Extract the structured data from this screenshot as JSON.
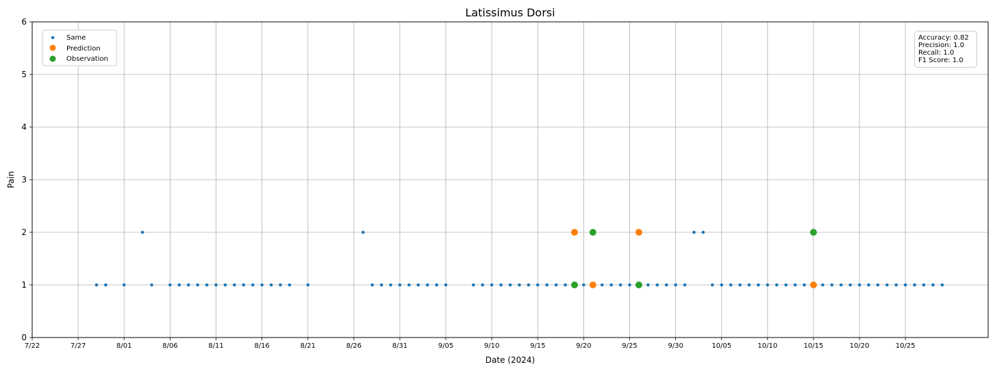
{
  "chart_data": {
    "type": "scatter",
    "title": "Latissimus Dorsi",
    "xlabel": "Date (2024)",
    "ylabel": "Pain",
    "ylim": [
      0,
      6
    ],
    "yticks": [
      "0",
      "1",
      "2",
      "3",
      "4",
      "5",
      "6"
    ],
    "xlim": [
      "2024-07-22",
      "2024-11-03"
    ],
    "xticks": [
      "7/22",
      "7/27",
      "8/01",
      "8/06",
      "8/11",
      "8/16",
      "8/21",
      "8/26",
      "8/31",
      "9/05",
      "9/10",
      "9/15",
      "9/20",
      "9/25",
      "9/30",
      "10/05",
      "10/10",
      "10/15",
      "10/20",
      "10/25"
    ],
    "grid": true,
    "legend_position": "top-left",
    "series": [
      {
        "name": "Same",
        "color": "#1f77b4",
        "marker": "small-circle",
        "points": [
          [
            "2024-07-29",
            1
          ],
          [
            "2024-07-30",
            1
          ],
          [
            "2024-08-01",
            1
          ],
          [
            "2024-08-03",
            2
          ],
          [
            "2024-08-04",
            1
          ],
          [
            "2024-08-06",
            1
          ],
          [
            "2024-08-07",
            1
          ],
          [
            "2024-08-08",
            1
          ],
          [
            "2024-08-09",
            1
          ],
          [
            "2024-08-10",
            1
          ],
          [
            "2024-08-11",
            1
          ],
          [
            "2024-08-12",
            1
          ],
          [
            "2024-08-13",
            1
          ],
          [
            "2024-08-14",
            1
          ],
          [
            "2024-08-15",
            1
          ],
          [
            "2024-08-16",
            1
          ],
          [
            "2024-08-17",
            1
          ],
          [
            "2024-08-18",
            1
          ],
          [
            "2024-08-19",
            1
          ],
          [
            "2024-08-21",
            1
          ],
          [
            "2024-08-27",
            2
          ],
          [
            "2024-08-28",
            1
          ],
          [
            "2024-08-29",
            1
          ],
          [
            "2024-08-30",
            1
          ],
          [
            "2024-08-31",
            1
          ],
          [
            "2024-09-01",
            1
          ],
          [
            "2024-09-02",
            1
          ],
          [
            "2024-09-03",
            1
          ],
          [
            "2024-09-04",
            1
          ],
          [
            "2024-09-05",
            1
          ],
          [
            "2024-09-08",
            1
          ],
          [
            "2024-09-09",
            1
          ],
          [
            "2024-09-10",
            1
          ],
          [
            "2024-09-11",
            1
          ],
          [
            "2024-09-12",
            1
          ],
          [
            "2024-09-13",
            1
          ],
          [
            "2024-09-14",
            1
          ],
          [
            "2024-09-15",
            1
          ],
          [
            "2024-09-16",
            1
          ],
          [
            "2024-09-17",
            1
          ],
          [
            "2024-09-18",
            1
          ],
          [
            "2024-09-20",
            1
          ],
          [
            "2024-09-22",
            1
          ],
          [
            "2024-09-23",
            1
          ],
          [
            "2024-09-24",
            1
          ],
          [
            "2024-09-25",
            1
          ],
          [
            "2024-09-27",
            1
          ],
          [
            "2024-09-28",
            1
          ],
          [
            "2024-09-29",
            1
          ],
          [
            "2024-09-30",
            1
          ],
          [
            "2024-10-01",
            1
          ],
          [
            "2024-10-02",
            2
          ],
          [
            "2024-10-03",
            2
          ],
          [
            "2024-10-04",
            1
          ],
          [
            "2024-10-05",
            1
          ],
          [
            "2024-10-06",
            1
          ],
          [
            "2024-10-07",
            1
          ],
          [
            "2024-10-08",
            1
          ],
          [
            "2024-10-09",
            1
          ],
          [
            "2024-10-10",
            1
          ],
          [
            "2024-10-11",
            1
          ],
          [
            "2024-10-12",
            1
          ],
          [
            "2024-10-13",
            1
          ],
          [
            "2024-10-14",
            1
          ],
          [
            "2024-10-16",
            1
          ],
          [
            "2024-10-17",
            1
          ],
          [
            "2024-10-18",
            1
          ],
          [
            "2024-10-19",
            1
          ],
          [
            "2024-10-20",
            1
          ],
          [
            "2024-10-21",
            1
          ],
          [
            "2024-10-22",
            1
          ],
          [
            "2024-10-23",
            1
          ],
          [
            "2024-10-24",
            1
          ],
          [
            "2024-10-25",
            1
          ],
          [
            "2024-10-26",
            1
          ],
          [
            "2024-10-27",
            1
          ],
          [
            "2024-10-28",
            1
          ],
          [
            "2024-10-29",
            1
          ]
        ]
      },
      {
        "name": "Prediction",
        "color": "#ff7f0e",
        "marker": "circle",
        "points": [
          [
            "2024-09-19",
            2
          ],
          [
            "2024-09-21",
            1
          ],
          [
            "2024-09-26",
            2
          ],
          [
            "2024-10-15",
            1
          ]
        ]
      },
      {
        "name": "Observation",
        "color": "#2ca02c",
        "marker": "circle",
        "points": [
          [
            "2024-09-19",
            1
          ],
          [
            "2024-09-21",
            2
          ],
          [
            "2024-09-26",
            1
          ],
          [
            "2024-10-15",
            2
          ]
        ]
      }
    ],
    "metrics": [
      "Accuracy: 0.82",
      "Precision: 1.0",
      "Recall: 1.0",
      "F1 Score: 1.0"
    ]
  }
}
